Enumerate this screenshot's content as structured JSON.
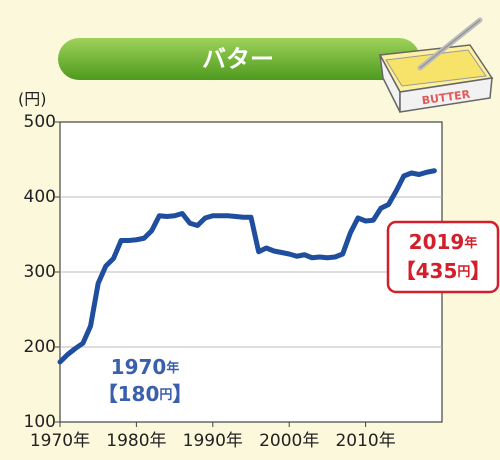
{
  "chart_data": {
    "type": "line",
    "title": "バター",
    "icon_label": "BUTTER",
    "y_label": "(円)",
    "color": "#1f4e9e",
    "x": [
      1970,
      1971,
      1972,
      1973,
      1974,
      1975,
      1976,
      1977,
      1978,
      1979,
      1980,
      1981,
      1982,
      1983,
      1984,
      1985,
      1986,
      1987,
      1988,
      1989,
      1990,
      1991,
      1992,
      1993,
      1994,
      1995,
      1996,
      1997,
      1998,
      1999,
      2000,
      2001,
      2002,
      2003,
      2004,
      2005,
      2006,
      2007,
      2008,
      2009,
      2010,
      2011,
      2012,
      2013,
      2014,
      2015,
      2016,
      2017,
      2018,
      2019
    ],
    "values": [
      180,
      190,
      198,
      205,
      228,
      285,
      308,
      318,
      342,
      342,
      343,
      345,
      355,
      375,
      374,
      375,
      378,
      365,
      362,
      372,
      375,
      375,
      375,
      374,
      373,
      373,
      327,
      332,
      328,
      326,
      324,
      321,
      323,
      319,
      320,
      319,
      320,
      324,
      352,
      372,
      368,
      369,
      385,
      390,
      408,
      428,
      432,
      430,
      433,
      435
    ],
    "xlim": [
      1970,
      2020
    ],
    "xticks": [
      {
        "value": 1970,
        "label": "1970年"
      },
      {
        "value": 1980,
        "label": "1980年"
      },
      {
        "value": 1990,
        "label": "1990年"
      },
      {
        "value": 2000,
        "label": "2000年"
      },
      {
        "value": 2010,
        "label": "2010年"
      }
    ],
    "ylim": [
      100,
      500
    ],
    "yticks": [
      100,
      200,
      300,
      400,
      500
    ],
    "grid": true,
    "annotations": [
      {
        "year": "1970",
        "year_unit": "年",
        "open": "【",
        "price": "180",
        "price_unit": "円",
        "close": "】",
        "color": "#3a5fad"
      },
      {
        "year": "2019",
        "year_unit": "年",
        "open": "【",
        "price": "435",
        "price_unit": "円",
        "close": "】",
        "color": "#d21f2b"
      }
    ]
  }
}
